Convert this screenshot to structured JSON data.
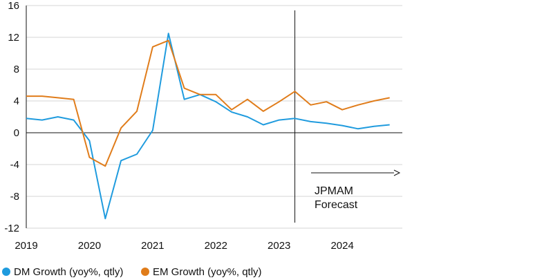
{
  "chart_data": {
    "type": "line",
    "xlabel": "",
    "ylabel": "",
    "x_tick_labels": [
      "2019",
      "2020",
      "2021",
      "2022",
      "2023",
      "2024"
    ],
    "y_ticks": [
      -12,
      -8,
      -4,
      0,
      4,
      8,
      12,
      16
    ],
    "y_tick_labels": [
      "-12",
      "-8",
      "-4",
      "0",
      "4",
      "8",
      "12",
      "16"
    ],
    "ylim": [
      -12,
      16
    ],
    "xlim": [
      2019.0,
      2024.95
    ],
    "grid": "horizontal",
    "legend_position": "bottom-left",
    "x": [
      2019.0,
      2019.25,
      2019.5,
      2019.75,
      2020.0,
      2020.25,
      2020.5,
      2020.75,
      2021.0,
      2021.25,
      2021.5,
      2021.75,
      2022.0,
      2022.25,
      2022.5,
      2022.75,
      2023.0,
      2023.25,
      2023.5,
      2023.75,
      2024.0,
      2024.25,
      2024.5,
      2024.75
    ],
    "series": [
      {
        "name": "DM Growth (yoy%, qtly)",
        "color": "#1f9bde",
        "values": [
          1.8,
          1.6,
          2.0,
          1.6,
          -1.0,
          -10.8,
          -3.5,
          -2.7,
          0.3,
          12.5,
          4.2,
          4.8,
          3.9,
          2.6,
          2.0,
          1.0,
          1.6,
          1.8,
          1.4,
          1.2,
          0.9,
          0.5,
          0.8,
          1.0
        ]
      },
      {
        "name": "EM Growth (yoy%, qtly)",
        "color": "#e07c1a",
        "values": [
          4.6,
          4.6,
          4.4,
          4.2,
          -3.1,
          -4.2,
          0.6,
          2.7,
          10.8,
          11.6,
          5.6,
          4.8,
          4.8,
          2.9,
          4.2,
          2.7,
          3.9,
          5.2,
          3.5,
          3.9,
          2.9,
          3.5,
          4.0,
          4.4
        ]
      }
    ],
    "forecast_divider_x": 2023.25,
    "annotation": {
      "line1": "JPMAM",
      "line2": "Forecast"
    }
  }
}
